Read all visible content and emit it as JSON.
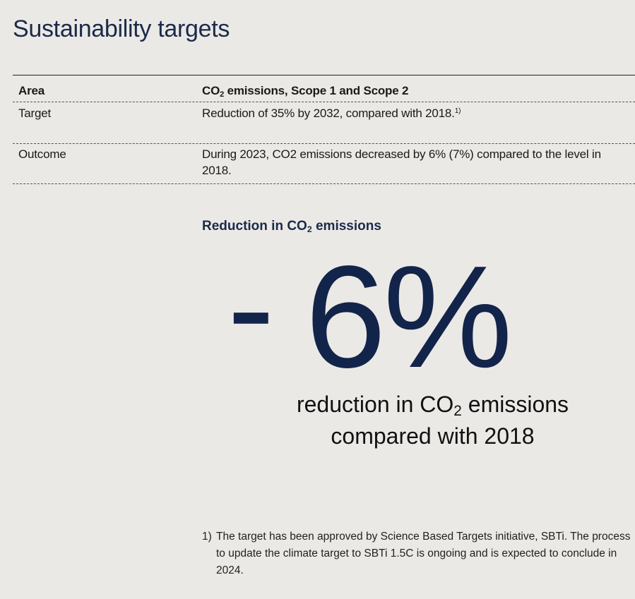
{
  "title": "Sustainability targets",
  "table": {
    "header": {
      "label": "Area",
      "value_prefix": "CO",
      "value_sub": "2",
      "value_suffix": " emissions, Scope 1 and Scope 2"
    },
    "rows": [
      {
        "label": "Target",
        "value": "Reduction of 35% by 2032, compared with 2018.",
        "footnote_ref": "1)"
      },
      {
        "label": "Outcome",
        "value": "During 2023, CO2 emissions decreased by 6% (7%) compared to the level in 2018."
      }
    ]
  },
  "highlight": {
    "heading_prefix": "Reduction in CO",
    "heading_sub": "2",
    "heading_suffix": " emissions",
    "minus": "-",
    "value": "6%",
    "caption_prefix": "reduction in CO",
    "caption_sub": "2",
    "caption_suffix": " emissions",
    "caption_line2": "compared with 2018"
  },
  "footnote": {
    "number": "1)",
    "text": "The target has been approved by Science Based Targets initiative, SBTi. The process to update the climate target to SBTi 1.5C is ongoing and is expected to conclude in 2024."
  }
}
